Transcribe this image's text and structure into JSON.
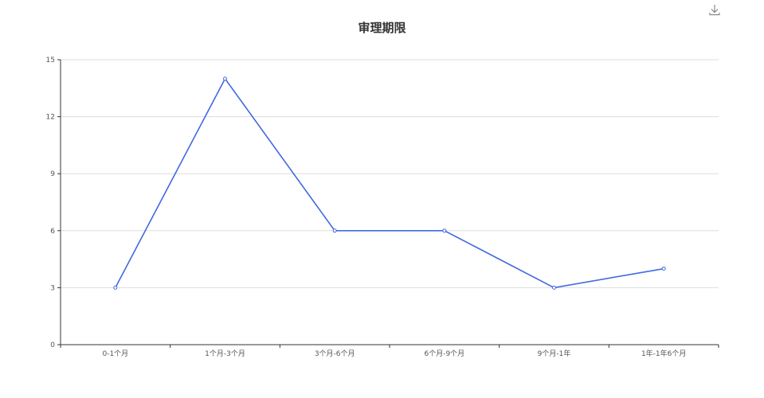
{
  "toolbar": {
    "save_icon": "download-icon"
  },
  "chart_data": {
    "type": "line",
    "title": "审理期限",
    "xlabel": "",
    "ylabel": "",
    "categories": [
      "0-1个月",
      "1个月-3个月",
      "3个月-6个月",
      "6个月-9个月",
      "9个月-1年",
      "1年-1年6个月"
    ],
    "series": [
      {
        "values": [
          3,
          14,
          6,
          6,
          3,
          4
        ],
        "color": "#4169e1"
      }
    ],
    "ylim": [
      0,
      15
    ],
    "yticks": [
      "0",
      "3",
      "6",
      "9",
      "12",
      "15"
    ],
    "grid": true,
    "legend": "none"
  }
}
